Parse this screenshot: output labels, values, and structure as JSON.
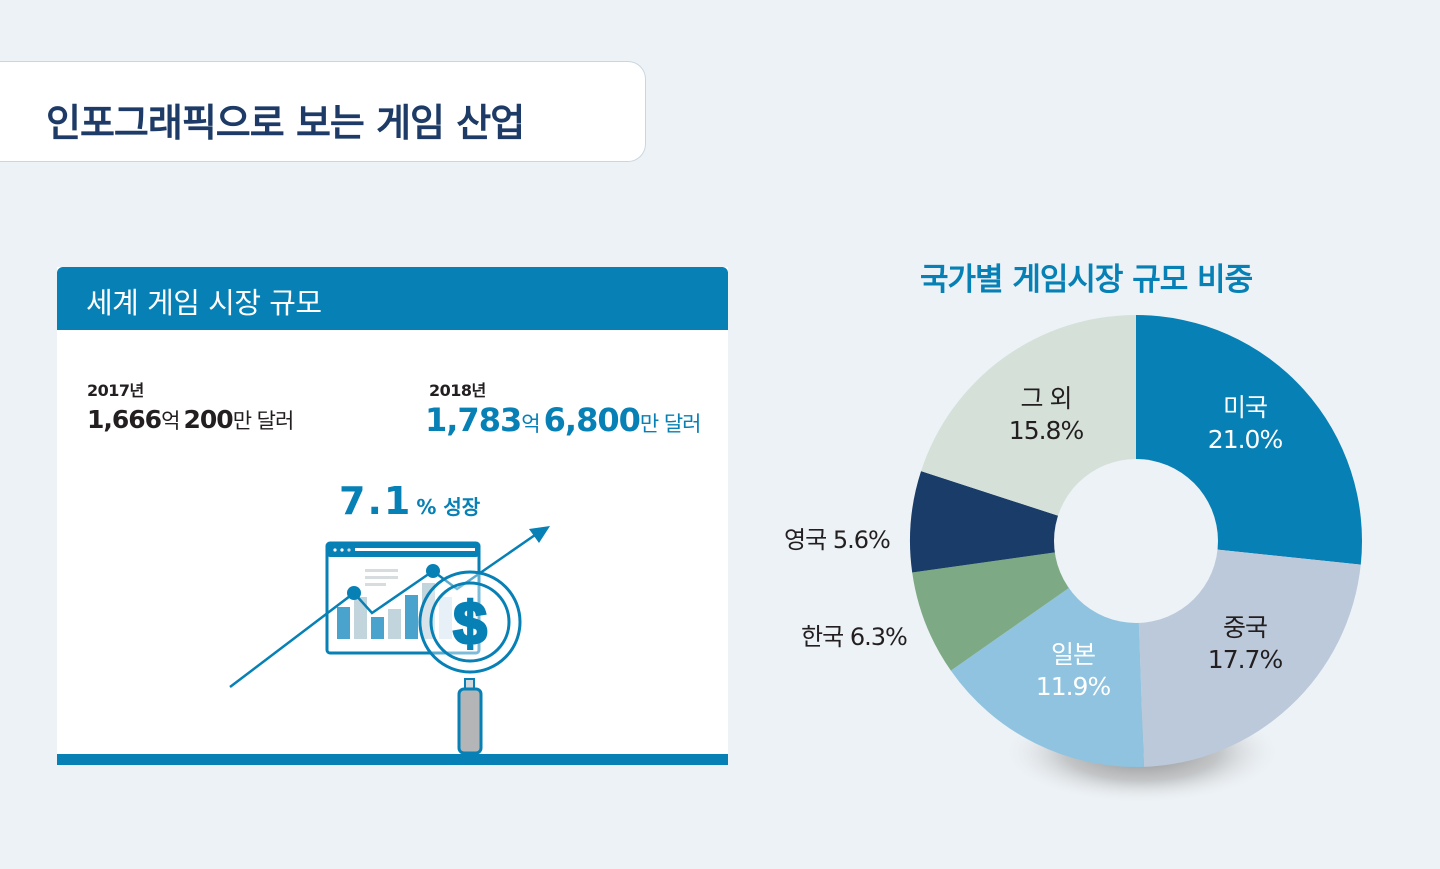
{
  "header": {
    "title": "인포그래픽으로 보는 게임 산업"
  },
  "market_size": {
    "title": "세계 게임 시장 규모",
    "y2017": {
      "year": "2017년",
      "amount_eok": "1,666",
      "eok_unit": "억",
      "amount_man": "200",
      "man_unit": "만 달러"
    },
    "y2018": {
      "year": "2018년",
      "amount_eok": "1,783",
      "eok_unit": "억",
      "amount_man": "6,800",
      "man_unit": "만 달러"
    },
    "growth": {
      "value": "7.1",
      "unit": "% 성장"
    },
    "icons": [
      "trend-up-arrow-icon",
      "browser-bar-chart-icon",
      "magnifier-dollar-icon"
    ]
  },
  "colors": {
    "background": "#edf2f6",
    "accent_blue": "#0680b5",
    "title_navy": "#1d3b66",
    "text_dark": "#231f20"
  },
  "chart_data": {
    "type": "pie",
    "title": "국가별 게임시장 규모 비중",
    "donut": true,
    "categories": [
      "미국",
      "중국",
      "일본",
      "한국",
      "영국",
      "그 외"
    ],
    "values": [
      21.0,
      17.7,
      11.9,
      6.3,
      5.6,
      15.8
    ],
    "labels": [
      "21.0%",
      "17.7%",
      "11.9%",
      "6.3%",
      "5.6%",
      "15.8%"
    ],
    "colors": [
      "#0680b5",
      "#bcc9da",
      "#8fc3e0",
      "#7daa85",
      "#1a3c68",
      "#d5e0d9"
    ],
    "label_colors": [
      "#ffffff",
      "#231f20",
      "#ffffff",
      "#231f20",
      "#231f20",
      "#231f20"
    ],
    "legend": "none (labels on slices / outside)"
  },
  "pie_labels": {
    "usa": {
      "name": "미국",
      "pct": "21.0%"
    },
    "china": {
      "name": "중국",
      "pct": "17.7%"
    },
    "japan": {
      "name": "일본",
      "pct": "11.9%"
    },
    "korea": {
      "name": "한국",
      "pct": "6.3%"
    },
    "uk": {
      "name": "영국",
      "pct": "5.6%"
    },
    "others": {
      "name": "그 외",
      "pct": "15.8%"
    }
  }
}
